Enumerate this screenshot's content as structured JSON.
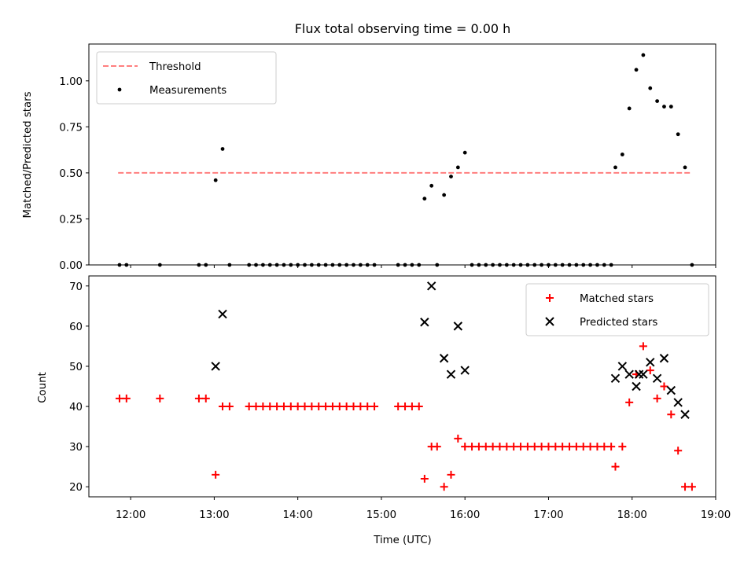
{
  "chart_data": [
    {
      "type": "scatter",
      "title": "Flux total observing time = 0.00 h",
      "xlabel": "",
      "ylabel": "Matched/Predicted stars",
      "xlim": [
        "11:30",
        "19:00"
      ],
      "ylim": [
        0,
        1.2
      ],
      "yticks": [
        "0.00",
        "0.25",
        "0.50",
        "0.75",
        "1.00"
      ],
      "legend": {
        "placement": "top-left",
        "entries": [
          "Threshold",
          "Measurements"
        ]
      },
      "threshold": {
        "name": "Threshold",
        "y": 0.5,
        "x_range": [
          "11:51",
          "18:42"
        ],
        "color": "#ff7f7f",
        "style": "dashed"
      },
      "series": [
        {
          "name": "Measurements",
          "color": "#000000",
          "marker": "dot",
          "points": [
            [
              "11:52",
              0
            ],
            [
              "11:57",
              0
            ],
            [
              "12:21",
              0
            ],
            [
              "12:49",
              0
            ],
            [
              "12:54",
              0
            ],
            [
              "13:01",
              0.46
            ],
            [
              "13:06",
              0.63
            ],
            [
              "13:11",
              0
            ],
            [
              "13:25",
              0
            ],
            [
              "13:30",
              0
            ],
            [
              "13:35",
              0
            ],
            [
              "13:40",
              0
            ],
            [
              "13:45",
              0
            ],
            [
              "13:50",
              0
            ],
            [
              "13:55",
              0
            ],
            [
              "14:00",
              0
            ],
            [
              "14:05",
              0
            ],
            [
              "14:10",
              0
            ],
            [
              "14:15",
              0
            ],
            [
              "14:20",
              0
            ],
            [
              "14:25",
              0
            ],
            [
              "14:30",
              0
            ],
            [
              "14:35",
              0
            ],
            [
              "14:40",
              0
            ],
            [
              "14:45",
              0
            ],
            [
              "14:50",
              0
            ],
            [
              "14:55",
              0
            ],
            [
              "15:12",
              0
            ],
            [
              "15:17",
              0
            ],
            [
              "15:22",
              0
            ],
            [
              "15:27",
              0
            ],
            [
              "15:31",
              0.36
            ],
            [
              "15:36",
              0.43
            ],
            [
              "15:40",
              0
            ],
            [
              "15:45",
              0.38
            ],
            [
              "15:50",
              0.48
            ],
            [
              "15:55",
              0.53
            ],
            [
              "16:00",
              0.61
            ],
            [
              "16:05",
              0
            ],
            [
              "16:10",
              0
            ],
            [
              "16:15",
              0
            ],
            [
              "16:20",
              0
            ],
            [
              "16:25",
              0
            ],
            [
              "16:30",
              0
            ],
            [
              "16:35",
              0
            ],
            [
              "16:40",
              0
            ],
            [
              "16:45",
              0
            ],
            [
              "16:50",
              0
            ],
            [
              "16:55",
              0
            ],
            [
              "17:00",
              0
            ],
            [
              "17:05",
              0
            ],
            [
              "17:10",
              0
            ],
            [
              "17:15",
              0
            ],
            [
              "17:20",
              0
            ],
            [
              "17:25",
              0
            ],
            [
              "17:30",
              0
            ],
            [
              "17:35",
              0
            ],
            [
              "17:40",
              0
            ],
            [
              "17:45",
              0
            ],
            [
              "17:48",
              0.53
            ],
            [
              "17:53",
              0.6
            ],
            [
              "17:58",
              0.85
            ],
            [
              "18:03",
              1.06
            ],
            [
              "18:08",
              1.14
            ],
            [
              "18:13",
              0.96
            ],
            [
              "18:18",
              0.89
            ],
            [
              "18:23",
              0.86
            ],
            [
              "18:28",
              0.86
            ],
            [
              "18:33",
              0.71
            ],
            [
              "18:38",
              0.53
            ],
            [
              "18:43",
              0
            ]
          ]
        }
      ]
    },
    {
      "type": "scatter",
      "title": "",
      "xlabel": "Time (UTC)",
      "ylabel": "Count",
      "xlim": [
        "11:30",
        "19:00"
      ],
      "ylim": [
        17.5,
        72.5
      ],
      "xticks": [
        "12:00",
        "13:00",
        "14:00",
        "15:00",
        "16:00",
        "17:00",
        "18:00",
        "19:00"
      ],
      "yticks": [
        "20",
        "30",
        "40",
        "50",
        "60",
        "70"
      ],
      "legend": {
        "placement": "top-right",
        "entries": [
          "Matched stars",
          "Predicted stars"
        ]
      },
      "series": [
        {
          "name": "Matched stars",
          "color": "#ff0000",
          "marker": "plus",
          "points": [
            [
              "11:52",
              42
            ],
            [
              "11:57",
              42
            ],
            [
              "12:21",
              42
            ],
            [
              "12:49",
              42
            ],
            [
              "12:54",
              42
            ],
            [
              "13:01",
              23
            ],
            [
              "13:06",
              40
            ],
            [
              "13:11",
              40
            ],
            [
              "13:25",
              40
            ],
            [
              "13:30",
              40
            ],
            [
              "13:35",
              40
            ],
            [
              "13:40",
              40
            ],
            [
              "13:45",
              40
            ],
            [
              "13:50",
              40
            ],
            [
              "13:55",
              40
            ],
            [
              "14:00",
              40
            ],
            [
              "14:05",
              40
            ],
            [
              "14:10",
              40
            ],
            [
              "14:15",
              40
            ],
            [
              "14:20",
              40
            ],
            [
              "14:25",
              40
            ],
            [
              "14:30",
              40
            ],
            [
              "14:35",
              40
            ],
            [
              "14:40",
              40
            ],
            [
              "14:45",
              40
            ],
            [
              "14:50",
              40
            ],
            [
              "14:55",
              40
            ],
            [
              "15:12",
              40
            ],
            [
              "15:17",
              40
            ],
            [
              "15:22",
              40
            ],
            [
              "15:27",
              40
            ],
            [
              "15:31",
              22
            ],
            [
              "15:36",
              30
            ],
            [
              "15:40",
              30
            ],
            [
              "15:45",
              20
            ],
            [
              "15:50",
              23
            ],
            [
              "15:55",
              32
            ],
            [
              "16:00",
              30
            ],
            [
              "16:05",
              30
            ],
            [
              "16:10",
              30
            ],
            [
              "16:15",
              30
            ],
            [
              "16:20",
              30
            ],
            [
              "16:25",
              30
            ],
            [
              "16:30",
              30
            ],
            [
              "16:35",
              30
            ],
            [
              "16:40",
              30
            ],
            [
              "16:45",
              30
            ],
            [
              "16:50",
              30
            ],
            [
              "16:55",
              30
            ],
            [
              "17:00",
              30
            ],
            [
              "17:05",
              30
            ],
            [
              "17:10",
              30
            ],
            [
              "17:15",
              30
            ],
            [
              "17:20",
              30
            ],
            [
              "17:25",
              30
            ],
            [
              "17:30",
              30
            ],
            [
              "17:35",
              30
            ],
            [
              "17:40",
              30
            ],
            [
              "17:45",
              30
            ],
            [
              "17:48",
              25
            ],
            [
              "17:53",
              30
            ],
            [
              "17:58",
              41
            ],
            [
              "18:03",
              48
            ],
            [
              "18:08",
              55
            ],
            [
              "18:13",
              49
            ],
            [
              "18:18",
              42
            ],
            [
              "18:23",
              45
            ],
            [
              "18:28",
              38
            ],
            [
              "18:33",
              29
            ],
            [
              "18:38",
              20
            ],
            [
              "18:43",
              20
            ]
          ]
        },
        {
          "name": "Predicted stars",
          "color": "#000000",
          "marker": "x",
          "points": [
            [
              "13:01",
              50
            ],
            [
              "13:06",
              63
            ],
            [
              "15:31",
              61
            ],
            [
              "15:36",
              70
            ],
            [
              "15:45",
              52
            ],
            [
              "15:50",
              48
            ],
            [
              "15:55",
              60
            ],
            [
              "16:00",
              49
            ],
            [
              "17:48",
              47
            ],
            [
              "17:53",
              50
            ],
            [
              "17:58",
              48
            ],
            [
              "18:03",
              45
            ],
            [
              "18:05",
              48
            ],
            [
              "18:08",
              48
            ],
            [
              "18:13",
              51
            ],
            [
              "18:18",
              47
            ],
            [
              "18:23",
              52
            ],
            [
              "18:28",
              44
            ],
            [
              "18:33",
              41
            ],
            [
              "18:38",
              38
            ]
          ]
        }
      ]
    }
  ]
}
